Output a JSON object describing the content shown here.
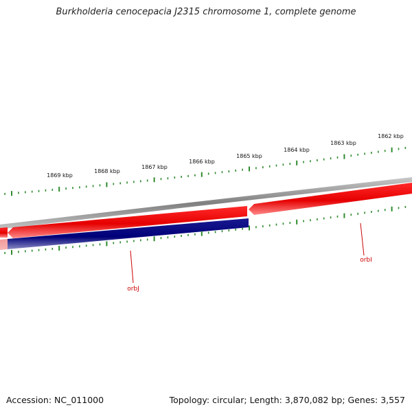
{
  "title": "Burkholderia cenocepacia J2315 chromosome 1, complete genome",
  "footer": {
    "accession": "Accession: NC_011000",
    "summary": "Topology: circular; Length: 3,870,082 bp; Genes: 3,557"
  },
  "colors": {
    "background": "#ffffff",
    "backbone": "#8a8a8a",
    "forward_gene": "#ee0000",
    "reverse_gene": "#000080",
    "ticks": "#2d8a2d",
    "gene_label": "#cc0000",
    "tick_label": "#111111"
  },
  "chart_data": {
    "type": "genome-map",
    "topology": "circular",
    "scale_unit": "kbp",
    "tick_labels": [
      "1869 kbp",
      "1868 kbp",
      "1867 kbp",
      "1866 kbp",
      "1865 kbp",
      "1864 kbp",
      "1863 kbp",
      "1862 kbp"
    ],
    "tick_positions_kbp": [
      1869,
      1868,
      1867,
      1866,
      1865,
      1864,
      1863,
      1862
    ],
    "genes": [
      {
        "name": "orbI",
        "strand": "forward",
        "start_kbp": 1861.7,
        "end_kbp": 1865.1
      },
      {
        "name": "orbJ",
        "strand": "reverse",
        "start_kbp": 1865.1,
        "end_kbp": 1870.3
      },
      {
        "name": "",
        "strand": "forward",
        "start_kbp": 1865.1,
        "end_kbp": 1870.2
      }
    ]
  }
}
